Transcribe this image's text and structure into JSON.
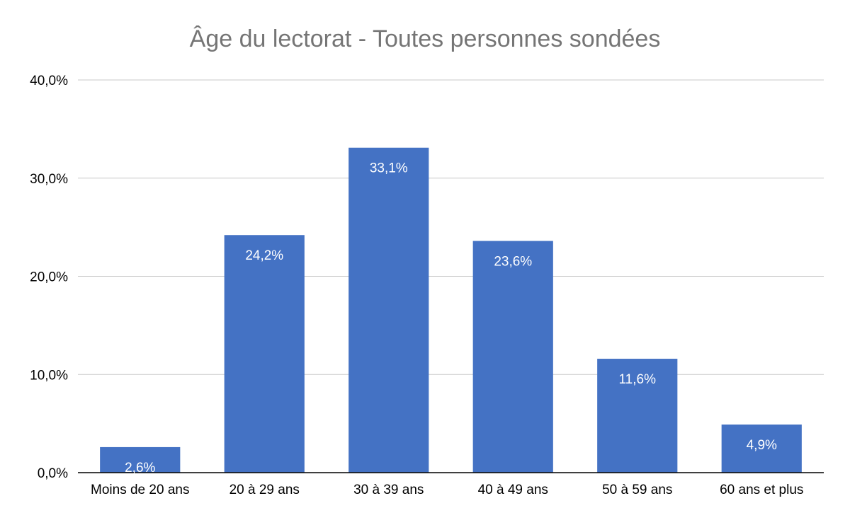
{
  "chart_data": {
    "type": "bar",
    "title": "Âge du lectorat - Toutes personnes sondées",
    "xlabel": "",
    "ylabel": "",
    "categories": [
      "Moins de 20 ans",
      "20 à 29 ans",
      "30 à 39 ans",
      "40 à 49 ans",
      "50 à 59 ans",
      "60 ans et plus"
    ],
    "values": [
      2.6,
      24.2,
      33.1,
      23.6,
      11.6,
      4.9
    ],
    "data_labels": [
      "2,6%",
      "24,2%",
      "33,1%",
      "23,6%",
      "11,6%",
      "4,9%"
    ],
    "ylim": [
      0,
      40
    ],
    "yticks": [
      0,
      10,
      20,
      30,
      40
    ],
    "ytick_labels": [
      "0,0%",
      "10,0%",
      "20,0%",
      "30,0%",
      "40,0%"
    ],
    "grid": true,
    "legend": "none",
    "colors": {
      "bar": "#4472C4",
      "title": "#757575",
      "grid": "#C8C8C8",
      "axis": "#000000",
      "data_label": "#FFFFFF"
    }
  }
}
